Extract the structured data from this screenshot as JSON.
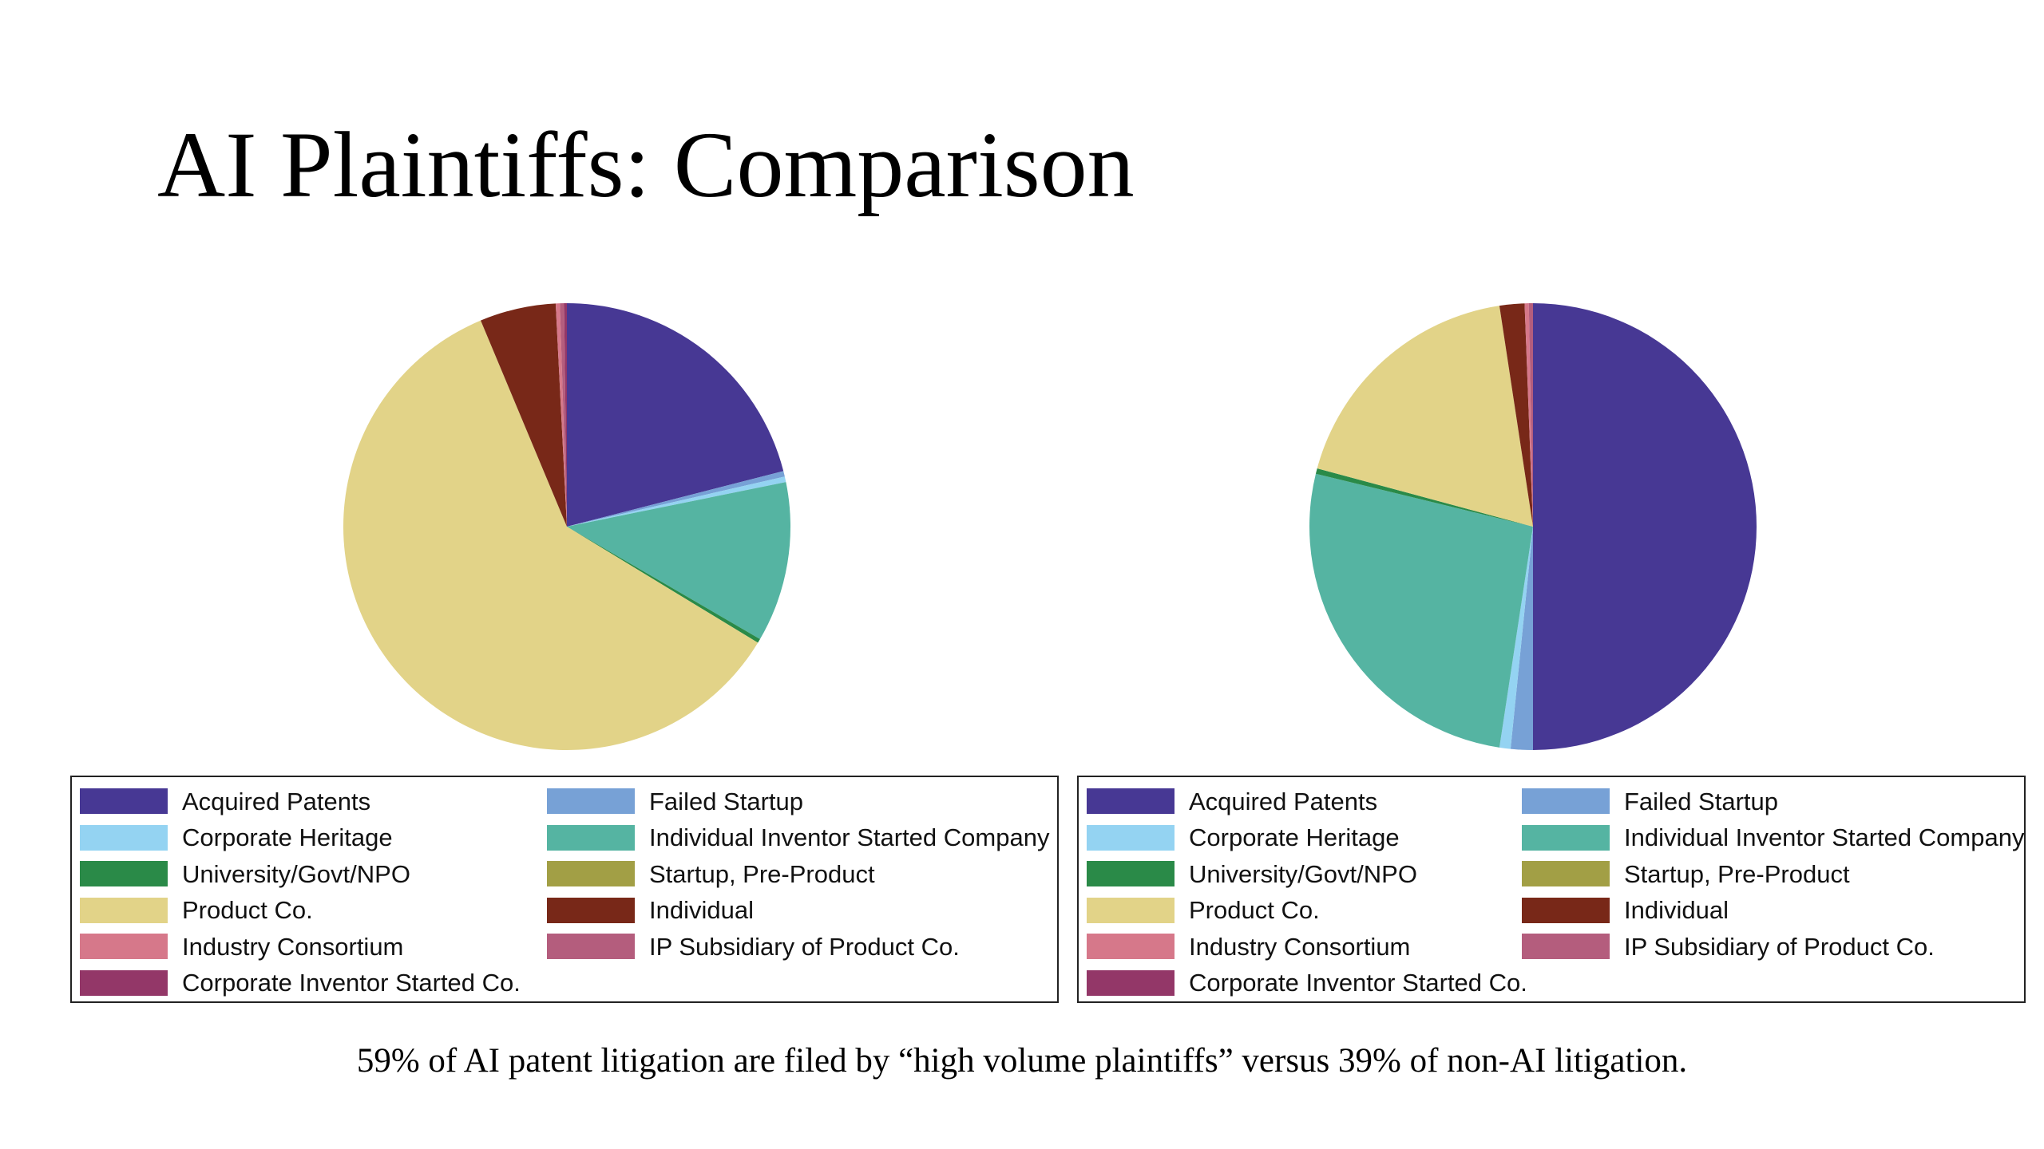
{
  "slide": {
    "title": "AI Plaintiffs: Comparison",
    "caption": "59% of AI patent litigation are filed by “high volume plaintiffs” versus 39% of non-AI litigation."
  },
  "chart_data": [
    {
      "type": "pie",
      "title": "",
      "legend_position": "bottom",
      "categories": [
        "Acquired Patents",
        "Failed Startup",
        "Corporate Heritage",
        "Individual Inventor Started Company",
        "University/Govt/NPO",
        "Startup, Pre-Product",
        "Product Co.",
        "Individual",
        "Industry Consortium",
        "IP Subsidiary of Product Co.",
        "Corporate Inventor Started Co."
      ],
      "legend_order": [
        "Acquired Patents",
        "Failed Startup",
        "Corporate Heritage",
        "Individual Inventor Started Company",
        "University/Govt/NPO",
        "Startup, Pre-Product",
        "Product Co.",
        "Individual",
        "Industry Consortium",
        "IP Subsidiary of Product Co.",
        "Corporate Inventor Started Co."
      ],
      "slice_order": [
        "Acquired Patents",
        "Failed Startup",
        "Corporate Heritage",
        "Individual Inventor Started Company",
        "University/Govt/NPO",
        "Startup, Pre-Product",
        "Product Co.",
        "Individual",
        "Industry Consortium",
        "IP Subsidiary of Product Co.",
        "Corporate Inventor Started Co."
      ],
      "values": [
        21.0,
        0.4,
        0.4,
        11.6,
        0.3,
        0.0,
        60.0,
        5.5,
        0.3,
        0.3,
        0.2
      ]
    },
    {
      "type": "pie",
      "title": "",
      "legend_position": "bottom",
      "categories": [
        "Acquired Patents",
        "Failed Startup",
        "Corporate Heritage",
        "Individual Inventor Started Company",
        "University/Govt/NPO",
        "Startup, Pre-Product",
        "Product Co.",
        "Individual",
        "Industry Consortium",
        "IP Subsidiary of Product Co.",
        "Corporate Inventor Started Co."
      ],
      "values": [
        50.0,
        1.6,
        0.8,
        26.4,
        0.4,
        0.0,
        18.4,
        1.8,
        0.3,
        0.3,
        0.0
      ]
    }
  ],
  "legend": {
    "labels": [
      "Acquired Patents",
      "Failed Startup",
      "Corporate Heritage",
      "Individual Inventor Started Company",
      "University/Govt/NPO",
      "Startup, Pre-Product",
      "Product Co.",
      "Individual",
      "Industry Consortium",
      "IP Subsidiary of Product Co.",
      "Corporate Inventor Started Co."
    ]
  },
  "colors": {
    "Acquired Patents": "#473894",
    "Failed Startup": "#77a1d6",
    "Corporate Heritage": "#94d3f2",
    "Individual Inventor Started Company": "#55b4a2",
    "University/Govt/NPO": "#2a8a48",
    "Startup, Pre-Product": "#a29f45",
    "Product Co.": "#e2d388",
    "Individual": "#782818",
    "Industry Consortium": "#d6788a",
    "IP Subsidiary of Product Co.": "#b45d7d",
    "Corporate Inventor Started Co.": "#933768"
  }
}
